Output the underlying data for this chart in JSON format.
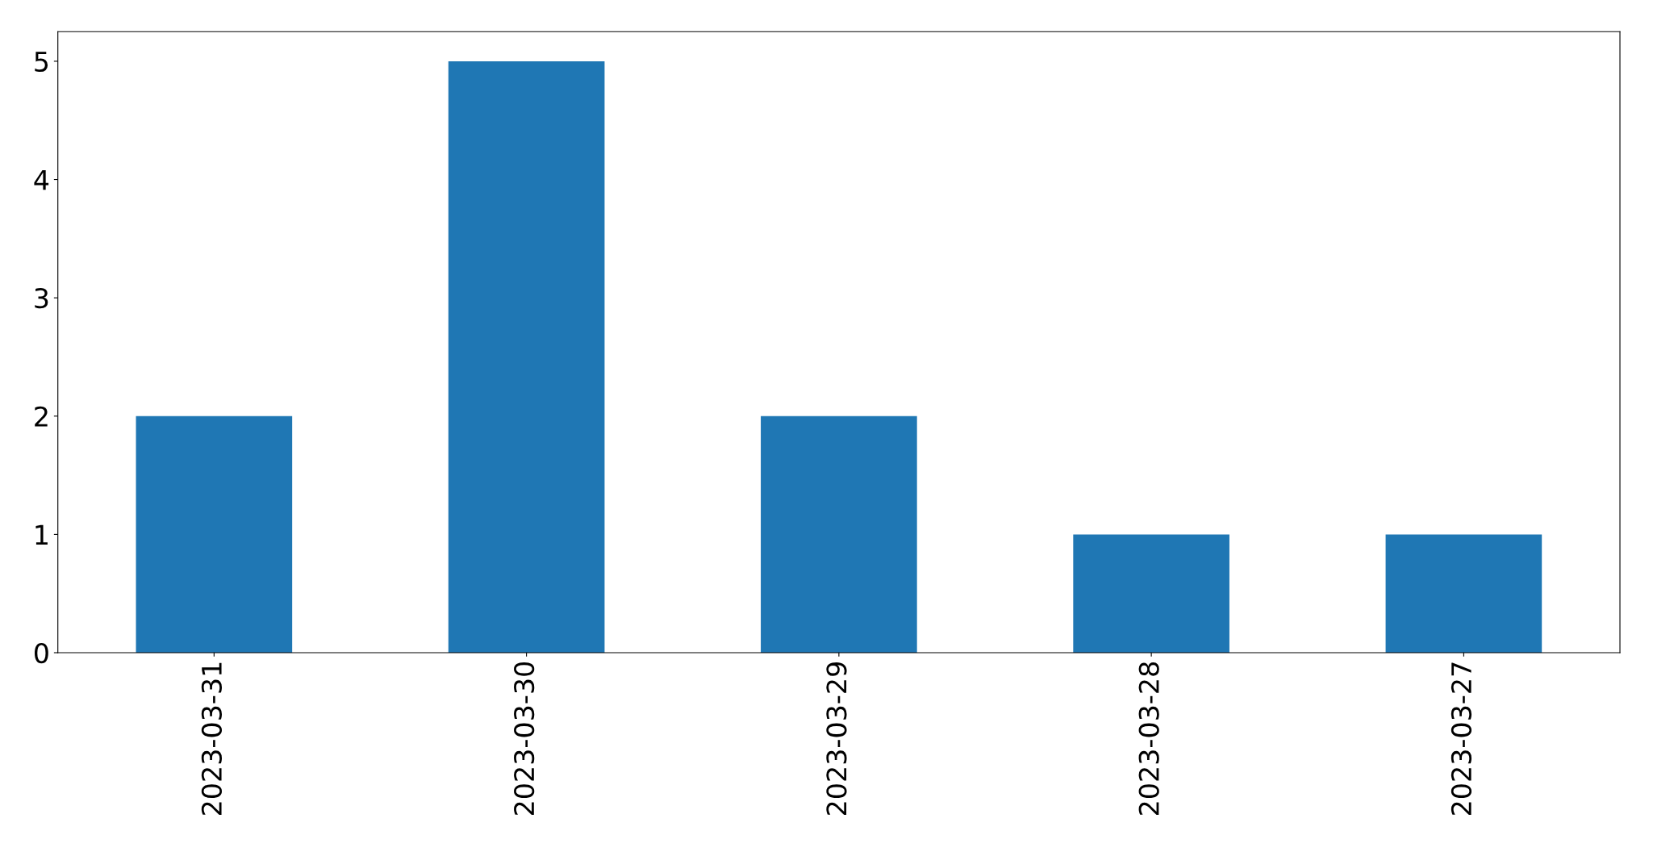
{
  "chart_data": {
    "type": "bar",
    "categories": [
      "2023-03-31",
      "2023-03-30",
      "2023-03-29",
      "2023-03-28",
      "2023-03-27"
    ],
    "values": [
      2,
      5,
      2,
      1,
      1
    ],
    "color": "#1f77b4",
    "ylim": [
      0,
      5.25
    ],
    "yticks": [
      0,
      1,
      2,
      3,
      4,
      5
    ],
    "grid": false
  }
}
